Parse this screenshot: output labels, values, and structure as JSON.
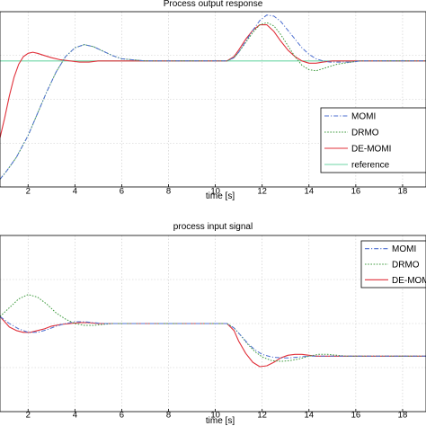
{
  "chart_data": [
    {
      "type": "line",
      "title": "Process output response",
      "xlabel": "time [s]",
      "ylabel": "",
      "xlim": [
        0.8,
        19.0
      ],
      "ylim": [
        -0.15,
        1.45
      ],
      "x_ticks": [
        2,
        4,
        6,
        8,
        10,
        12,
        14,
        16,
        18
      ],
      "grid": true,
      "legend_position": "lower-right",
      "series": [
        {
          "name": "MOMI",
          "color": "#4d6fd0",
          "style": "dashdot",
          "x": [
            0.8,
            1.1,
            1.5,
            2.0,
            2.4,
            2.8,
            3.2,
            3.6,
            4.0,
            4.4,
            4.8,
            5.2,
            5.6,
            6.0,
            7.0,
            8.0,
            9.0,
            10.0,
            10.5,
            10.8,
            11.0,
            11.3,
            11.6,
            11.9,
            12.2,
            12.5,
            12.8,
            13.1,
            13.4,
            13.7,
            14.0,
            14.3,
            14.6,
            14.9,
            15.2,
            15.5,
            15.8,
            16.2,
            16.8,
            17.5,
            18.2,
            19.0
          ],
          "y": [
            -0.08,
            0.0,
            0.12,
            0.32,
            0.52,
            0.72,
            0.9,
            1.04,
            1.12,
            1.15,
            1.13,
            1.09,
            1.05,
            1.02,
            1.0,
            1.0,
            1.0,
            1.0,
            1.0,
            1.03,
            1.08,
            1.18,
            1.28,
            1.37,
            1.42,
            1.41,
            1.36,
            1.28,
            1.2,
            1.12,
            1.06,
            1.02,
            1.0,
            0.99,
            0.99,
            0.99,
            0.99,
            1.0,
            1.0,
            1.0,
            1.0,
            1.0
          ]
        },
        {
          "name": "DRMO",
          "color": "#3f9b3f",
          "style": "dotted",
          "x": [
            0.8,
            1.1,
            1.5,
            2.0,
            2.4,
            2.8,
            3.2,
            3.6,
            4.0,
            4.4,
            4.8,
            5.2,
            5.6,
            6.0,
            7.0,
            8.0,
            9.0,
            10.0,
            10.5,
            10.8,
            11.0,
            11.3,
            11.6,
            11.9,
            12.2,
            12.5,
            12.8,
            13.1,
            13.4,
            13.7,
            14.0,
            14.3,
            14.6,
            14.9,
            15.2,
            15.5,
            15.8,
            16.2,
            16.8,
            17.5,
            18.2,
            19.0
          ],
          "y": [
            -0.08,
            0.0,
            0.12,
            0.32,
            0.52,
            0.72,
            0.9,
            1.04,
            1.12,
            1.15,
            1.13,
            1.09,
            1.05,
            1.02,
            1.0,
            1.0,
            1.0,
            1.0,
            1.0,
            1.03,
            1.08,
            1.17,
            1.26,
            1.33,
            1.35,
            1.32,
            1.24,
            1.14,
            1.04,
            0.96,
            0.92,
            0.91,
            0.93,
            0.95,
            0.97,
            0.98,
            0.99,
            1.0,
            1.0,
            1.0,
            1.0,
            1.0
          ]
        },
        {
          "name": "DE-MOMI",
          "color": "#e0303a",
          "style": "solid",
          "x": [
            0.8,
            1.0,
            1.2,
            1.4,
            1.6,
            1.8,
            2.0,
            2.2,
            2.4,
            2.7,
            3.0,
            3.4,
            3.8,
            4.2,
            4.6,
            5.0,
            5.5,
            6.0,
            7.0,
            8.0,
            9.0,
            10.0,
            10.5,
            10.8,
            11.0,
            11.3,
            11.6,
            11.9,
            12.2,
            12.5,
            12.8,
            13.1,
            13.4,
            13.7,
            14.0,
            14.3,
            14.6,
            15.0,
            15.5,
            16.0,
            17.0,
            18.0,
            19.0
          ],
          "y": [
            0.3,
            0.48,
            0.68,
            0.85,
            0.97,
            1.04,
            1.07,
            1.08,
            1.07,
            1.05,
            1.03,
            1.01,
            1.0,
            0.99,
            0.99,
            1.0,
            1.0,
            1.0,
            1.0,
            1.0,
            1.0,
            1.0,
            1.0,
            1.04,
            1.1,
            1.2,
            1.28,
            1.33,
            1.33,
            1.27,
            1.18,
            1.1,
            1.04,
            1.0,
            0.98,
            0.98,
            0.99,
            1.0,
            1.0,
            1.0,
            1.0,
            1.0,
            1.0
          ]
        },
        {
          "name": "reference",
          "color": "#6ed6a6",
          "style": "solid",
          "x": [
            0.8,
            19.0
          ],
          "y": [
            1.0,
            1.0
          ]
        }
      ]
    },
    {
      "type": "line",
      "title": "process input signal",
      "xlabel": "time [s]",
      "ylabel": "",
      "xlim": [
        0.8,
        19.0
      ],
      "ylim": [
        -1.0,
        1.0
      ],
      "x_ticks": [
        2,
        4,
        6,
        8,
        10,
        12,
        14,
        16,
        18
      ],
      "grid": true,
      "legend_position": "top-right",
      "series": [
        {
          "name": "MOMI",
          "color": "#4d6fd0",
          "style": "dashdot",
          "x": [
            0.8,
            1.2,
            1.6,
            2.0,
            2.4,
            2.8,
            3.2,
            3.6,
            4.0,
            4.4,
            4.8,
            5.2,
            5.6,
            6.0,
            7.0,
            8.0,
            9.0,
            10.0,
            10.5,
            10.8,
            11.1,
            11.4,
            11.7,
            12.0,
            12.4,
            12.8,
            13.2,
            13.6,
            14.0,
            14.5,
            15.0,
            16.0,
            17.0,
            18.0,
            19.0
          ],
          "y": [
            0.08,
            0.0,
            -0.06,
            -0.1,
            -0.1,
            -0.07,
            -0.03,
            0.0,
            0.02,
            0.02,
            0.01,
            0.0,
            0.0,
            0.0,
            0.0,
            0.0,
            0.0,
            0.0,
            0.0,
            -0.05,
            -0.14,
            -0.23,
            -0.3,
            -0.35,
            -0.38,
            -0.39,
            -0.39,
            -0.38,
            -0.37,
            -0.37,
            -0.37,
            -0.37,
            -0.37,
            -0.37,
            -0.37
          ]
        },
        {
          "name": "DRMO",
          "color": "#3f9b3f",
          "style": "dotted",
          "x": [
            0.8,
            1.2,
            1.6,
            2.0,
            2.4,
            2.8,
            3.2,
            3.6,
            4.0,
            4.4,
            4.8,
            5.2,
            5.6,
            6.0,
            7.0,
            8.0,
            9.0,
            10.0,
            10.5,
            10.8,
            11.1,
            11.4,
            11.7,
            12.0,
            12.4,
            12.8,
            13.2,
            13.6,
            14.0,
            14.4,
            14.8,
            15.2,
            15.6,
            16.0,
            17.0,
            18.0,
            19.0
          ],
          "y": [
            0.08,
            0.18,
            0.28,
            0.33,
            0.3,
            0.22,
            0.12,
            0.05,
            0.0,
            -0.02,
            -0.02,
            -0.01,
            0.0,
            0.0,
            0.0,
            0.0,
            0.0,
            0.0,
            0.0,
            -0.05,
            -0.14,
            -0.24,
            -0.32,
            -0.38,
            -0.42,
            -0.43,
            -0.42,
            -0.4,
            -0.37,
            -0.35,
            -0.35,
            -0.36,
            -0.37,
            -0.37,
            -0.37,
            -0.37,
            -0.37
          ]
        },
        {
          "name": "DE-MOMI",
          "color": "#e0303a",
          "style": "solid",
          "x": [
            0.8,
            1.0,
            1.2,
            1.5,
            1.8,
            2.1,
            2.4,
            2.7,
            3.0,
            3.4,
            3.8,
            4.2,
            4.6,
            5.0,
            5.5,
            6.0,
            7.0,
            8.0,
            9.0,
            10.0,
            10.5,
            10.8,
            11.0,
            11.3,
            11.6,
            11.9,
            12.2,
            12.5,
            12.8,
            13.1,
            13.4,
            13.7,
            14.0,
            14.3,
            14.6,
            15.0,
            16.0,
            17.0,
            18.0,
            19.0
          ],
          "y": [
            0.08,
            0.02,
            -0.04,
            -0.08,
            -0.1,
            -0.1,
            -0.08,
            -0.06,
            -0.03,
            -0.01,
            0.0,
            0.01,
            0.01,
            0.0,
            0.0,
            0.0,
            0.0,
            0.0,
            0.0,
            0.0,
            0.0,
            -0.08,
            -0.2,
            -0.34,
            -0.44,
            -0.49,
            -0.48,
            -0.44,
            -0.39,
            -0.36,
            -0.35,
            -0.35,
            -0.36,
            -0.37,
            -0.37,
            -0.37,
            -0.37,
            -0.37,
            -0.37,
            -0.37
          ]
        }
      ]
    }
  ]
}
